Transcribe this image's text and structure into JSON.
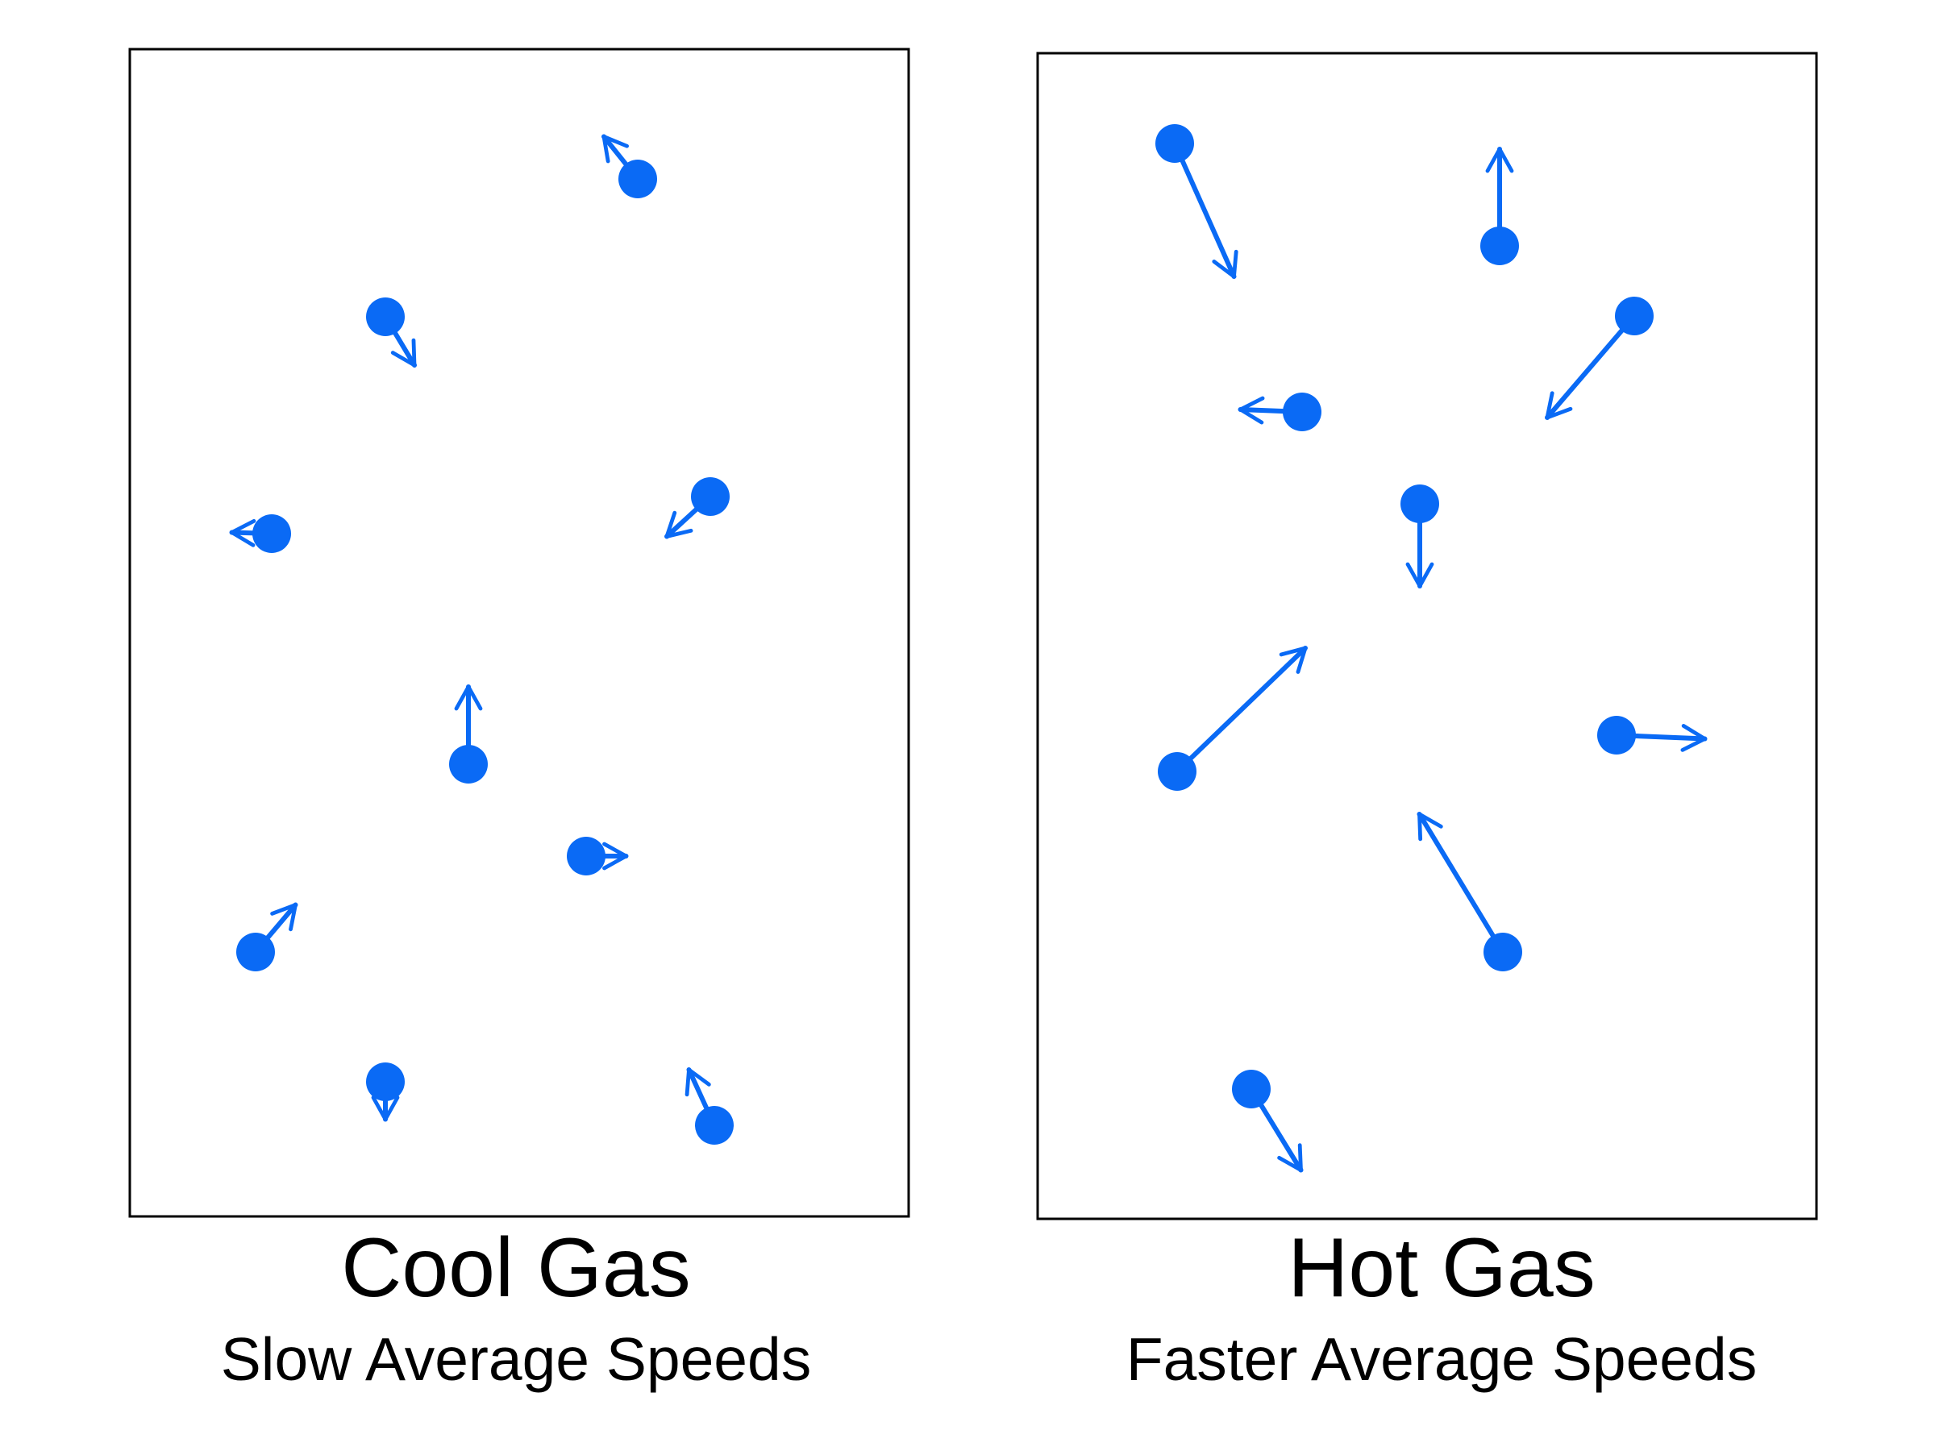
{
  "molecule_color": "#0a6af5",
  "panels": [
    {
      "title": "Cool Gas",
      "subtitle": "Slow Average Speeds",
      "molecules": [
        {
          "vx": -0.28,
          "vy": -0.35
        },
        {
          "vx": 0.24,
          "vy": 0.4
        },
        {
          "vx": -0.33,
          "vy": -0.01
        },
        {
          "vx": -0.36,
          "vy": 0.33
        },
        {
          "vx": 0.0,
          "vy": -0.64
        },
        {
          "vx": 0.33,
          "vy": 0.0
        },
        {
          "vx": 0.33,
          "vy": -0.39
        },
        {
          "vx": 0.0,
          "vy": 0.31
        },
        {
          "vx": -0.21,
          "vy": -0.46
        }
      ]
    },
    {
      "title": "Hot Gas",
      "subtitle": "Faster Average Speeds",
      "molecules": [
        {
          "vx": 0.49,
          "vy": 1.1
        },
        {
          "vx": 0.0,
          "vy": -0.8
        },
        {
          "vx": -0.72,
          "vy": 0.84
        },
        {
          "vx": -0.51,
          "vy": -0.02
        },
        {
          "vx": 0.0,
          "vy": 0.68
        },
        {
          "vx": 1.06,
          "vy": -1.02
        },
        {
          "vx": 0.73,
          "vy": 0.03
        },
        {
          "vx": -0.69,
          "vy": -1.14
        },
        {
          "vx": 0.41,
          "vy": 0.67
        }
      ]
    }
  ]
}
